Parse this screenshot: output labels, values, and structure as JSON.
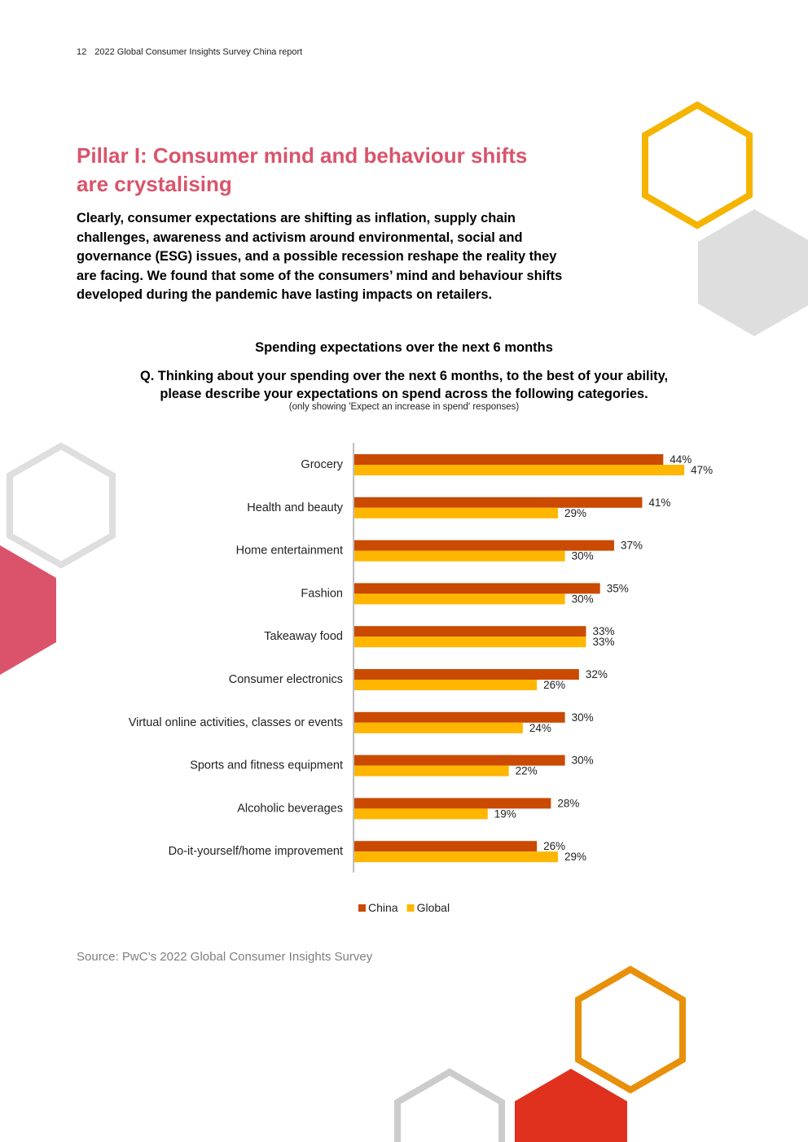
{
  "header": {
    "page_number": "12",
    "report_title": "2022 Global Consumer Insights Survey China report"
  },
  "title": {
    "line1": "Pillar I: Consumer mind and behaviour shifts",
    "line2": "are crystalising"
  },
  "intro": "Clearly, consumer expectations are shifting as inflation, supply chain challenges, awareness and activism around environmental, social and governance (ESG) issues, and a possible recession reshape the reality they are facing. We found that some of the consumers’ mind and behaviour shifts developed during the pandemic have lasting impacts on retailers.",
  "chart_header": {
    "title": "Spending expectations over the next 6 months",
    "question_line1": "Q. Thinking about your spending over the next 6 months, to the best of your ability,",
    "question_line2": "please describe your expectations on spend across the following categories.",
    "note": "(only showing 'Expect an increase in spend' responses)"
  },
  "chart_data": {
    "type": "bar",
    "orientation": "horizontal",
    "title": "Spending expectations over the next 6 months",
    "categories": [
      "Grocery",
      "Health and beauty",
      "Home entertainment",
      "Fashion",
      "Takeaway food",
      "Consumer electronics",
      "Virtual online activities, classes or events",
      "Sports and fitness equipment",
      "Alcoholic beverages",
      "Do-it-yourself/home improvement"
    ],
    "series": [
      {
        "name": "China",
        "color": "#c94a00",
        "values": [
          44,
          41,
          37,
          35,
          33,
          32,
          30,
          30,
          28,
          26
        ]
      },
      {
        "name": "Global",
        "color": "#ffb600",
        "values": [
          47,
          29,
          30,
          30,
          33,
          26,
          24,
          22,
          19,
          29
        ]
      }
    ],
    "value_suffix": "%",
    "xlim": [
      0,
      50
    ],
    "grid": false,
    "legend_position": "bottom-center"
  },
  "source": "Source: PwC’s 2022 Global Consumer Insights Survey",
  "colors": {
    "title": "#d9546b",
    "hex_yellow": "#f5b400",
    "hex_grey": "#dedede",
    "hex_pink": "#db536a",
    "hex_orange": "#e8900a",
    "hex_red": "#e0301e"
  }
}
